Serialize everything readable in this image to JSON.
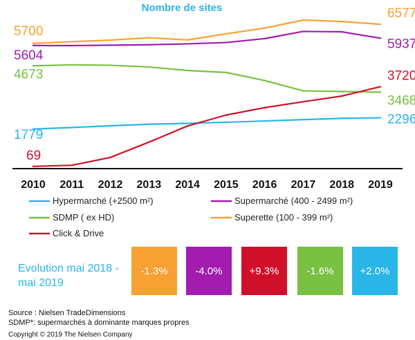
{
  "chart_data": {
    "type": "line",
    "title": "Nombre de sites",
    "x": [
      "2010",
      "2011",
      "2012",
      "2013",
      "2014",
      "2015",
      "2016",
      "2017",
      "2018",
      "2019"
    ],
    "series": [
      {
        "name": "Hypermarché (+2500 m²)",
        "color": "#29b5e8",
        "start_label": "1779",
        "end_label": "2296",
        "values": [
          1779,
          1850,
          1930,
          2000,
          2040,
          2090,
          2150,
          2210,
          2270,
          2296
        ]
      },
      {
        "name": "Supermarché (400 - 2499 m²)",
        "color": "#a21caf",
        "start_label": "5604",
        "end_label": "5937",
        "values": [
          5604,
          5600,
          5620,
          5640,
          5680,
          5740,
          5920,
          6250,
          6230,
          5937
        ]
      },
      {
        "name": "SDMP ( ex HD)",
        "color": "#79c043",
        "start_label": "4673",
        "end_label": "3468",
        "values": [
          4673,
          4720,
          4700,
          4620,
          4460,
          4370,
          4000,
          3530,
          3500,
          3468
        ]
      },
      {
        "name": "Superette (100 - 399 m²)",
        "color": "#f7a133",
        "start_label": "5700",
        "end_label": "6577",
        "values": [
          5700,
          5780,
          5850,
          5960,
          5860,
          6140,
          6400,
          6770,
          6700,
          6577
        ]
      },
      {
        "name": "Click & Drive",
        "color": "#d0102b",
        "start_label": "69",
        "end_label": "3720",
        "values": [
          69,
          120,
          480,
          1180,
          1920,
          2420,
          2760,
          3030,
          3290,
          3720
        ]
      }
    ]
  },
  "evolution": {
    "label": "Evolution mai 2018 - mai 2019",
    "boxes": [
      {
        "value": "-1.3%",
        "color": "#f7a133"
      },
      {
        "value": "-4.0%",
        "color": "#a21caf"
      },
      {
        "value": "+9.3%",
        "color": "#d0102b"
      },
      {
        "value": "-1.6%",
        "color": "#79c043"
      },
      {
        "value": "+2.0%",
        "color": "#29b5e8"
      }
    ]
  },
  "footer": {
    "source": "Source : Nielsen TradeDimensions",
    "sdmp_note": "SDMP*: supermarchés à dominante marques propres",
    "copyright": "Copyright © 2019 The Nielsen Company"
  }
}
